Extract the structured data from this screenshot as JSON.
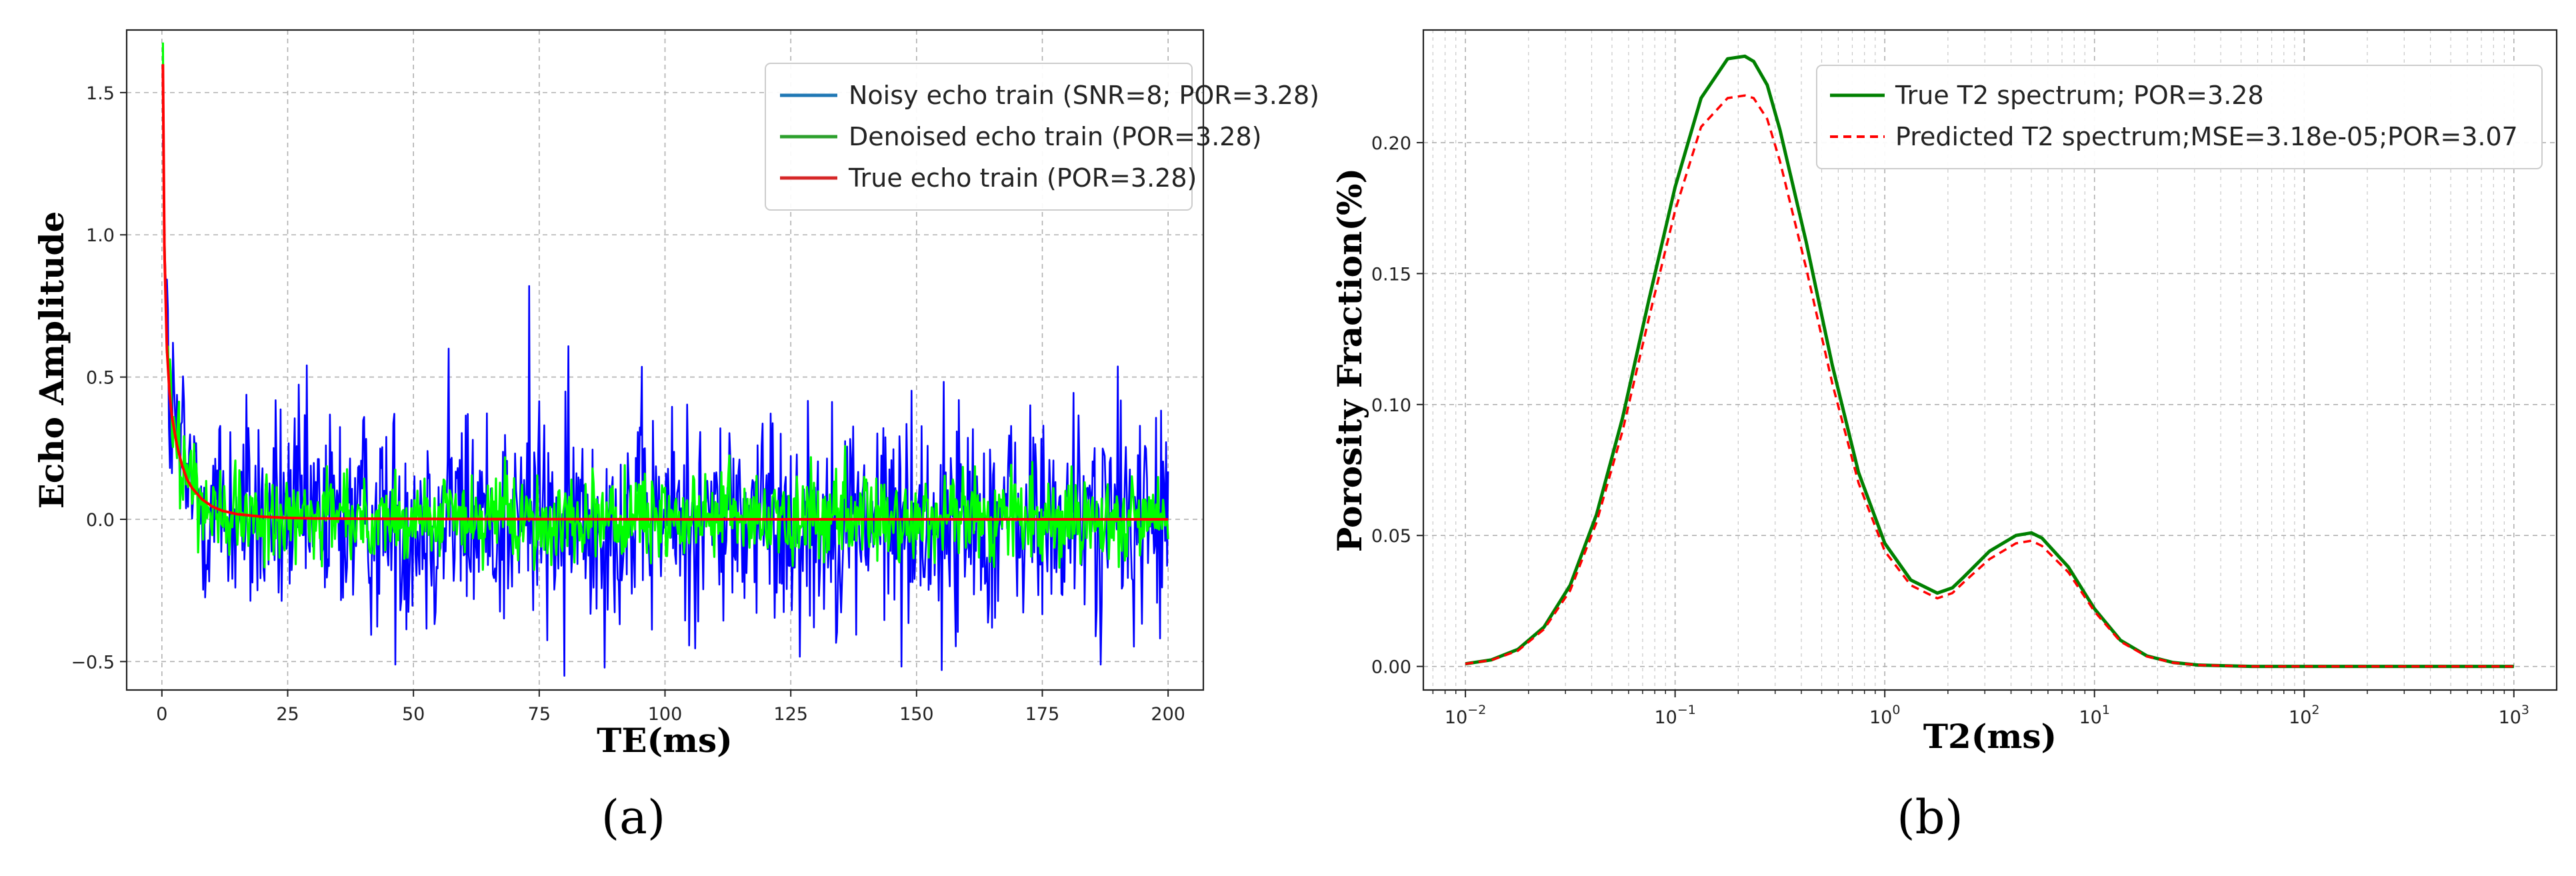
{
  "chart_data": [
    {
      "panel": "(a)",
      "type": "line",
      "xlabel": "TE(ms)",
      "ylabel": "Echo Amplitude",
      "xlim": [
        -7,
        207
      ],
      "ylim": [
        -0.6,
        1.72
      ],
      "xticks": [
        0,
        25,
        50,
        75,
        100,
        125,
        150,
        175,
        200
      ],
      "yticks": [
        -0.5,
        0.0,
        0.5,
        1.0,
        1.5
      ],
      "xtick_labels": [
        "0",
        "25",
        "50",
        "75",
        "100",
        "125",
        "150",
        "175",
        "200"
      ],
      "ytick_labels": [
        "−0.5",
        "0.0",
        "0.5",
        "1.0",
        "1.5"
      ],
      "grid": true,
      "legend_position": "top-right",
      "series": [
        {
          "name": "Noisy echo train (SNR=8; POR=3.28)",
          "color": "#0000ff",
          "generator": "noisy",
          "n_points": 1000,
          "noise_amplitude": 0.2,
          "x_range": [
            0.2,
            200
          ]
        },
        {
          "name": "Denoised echo train (POR=3.28)",
          "color": "#00ff00",
          "generator": "denoised",
          "n_points": 1000,
          "noise_amplitude": 0.08,
          "x_range": [
            0.2,
            200
          ]
        },
        {
          "name": "True echo train (POR=3.28)",
          "color": "#ff0000",
          "x": [
            0.2,
            0.5,
            1,
            1.5,
            2,
            3,
            4,
            5,
            6,
            8,
            10,
            12,
            15,
            20,
            25,
            30,
            40,
            60,
            100,
            150,
            200
          ],
          "y": [
            1.6,
            0.95,
            0.6,
            0.45,
            0.36,
            0.26,
            0.19,
            0.14,
            0.11,
            0.07,
            0.045,
            0.03,
            0.018,
            0.009,
            0.005,
            0.003,
            0.002,
            0.001,
            0.0,
            0.0,
            0.0
          ]
        }
      ],
      "notable_noisy_peaks": [
        {
          "x": 73,
          "y": 0.82
        },
        {
          "x": 57,
          "y": 0.6
        },
        {
          "x": 80,
          "y": -0.55
        },
        {
          "x": 155,
          "y": -0.53
        }
      ]
    },
    {
      "panel": "(b)",
      "type": "line",
      "xscale": "log",
      "xlabel": "T2(ms)",
      "ylabel": "Porosity Fraction(%)",
      "xlim": [
        0.0063,
        1600
      ],
      "ylim": [
        -0.009,
        0.243
      ],
      "xticks": [
        0.01,
        0.1,
        1,
        10,
        100,
        1000
      ],
      "xtick_labels": [
        {
          "base": "10",
          "exp": "−2"
        },
        {
          "base": "10",
          "exp": "−1"
        },
        {
          "base": "10",
          "exp": "0"
        },
        {
          "base": "10",
          "exp": "1"
        },
        {
          "base": "10",
          "exp": "2"
        },
        {
          "base": "10",
          "exp": "3"
        }
      ],
      "yticks": [
        0.0,
        0.05,
        0.1,
        0.15,
        0.2
      ],
      "ytick_labels": [
        "0.00",
        "0.05",
        "0.10",
        "0.15",
        "0.20"
      ],
      "grid": true,
      "legend_position": "top-right",
      "x": [
        0.01,
        0.0133,
        0.0178,
        0.0237,
        0.0316,
        0.0422,
        0.0562,
        0.075,
        0.1,
        0.133,
        0.178,
        0.215,
        0.237,
        0.275,
        0.316,
        0.422,
        0.562,
        0.75,
        1.0,
        1.33,
        1.78,
        2.1,
        2.37,
        3.16,
        4.22,
        5.0,
        5.62,
        7.5,
        10,
        13.3,
        17.8,
        23.7,
        31.6,
        56.2,
        100,
        316,
        1000
      ],
      "series": [
        {
          "name": "True T2 spectrum;  POR=3.28",
          "color": "#008000",
          "dash": "solid",
          "y": [
            0.001,
            0.0025,
            0.0065,
            0.015,
            0.031,
            0.058,
            0.095,
            0.14,
            0.183,
            0.217,
            0.232,
            0.233,
            0.231,
            0.222,
            0.205,
            0.162,
            0.115,
            0.074,
            0.047,
            0.033,
            0.028,
            0.03,
            0.034,
            0.044,
            0.05,
            0.051,
            0.049,
            0.038,
            0.022,
            0.01,
            0.004,
            0.0015,
            0.0005,
            0.0,
            0.0,
            0.0,
            0.0
          ]
        },
        {
          "name": "Predicted T2 spectrum;MSE=3.18e-05;POR=3.07",
          "color": "#ff0000",
          "dash": "dashed",
          "y": [
            0.001,
            0.0024,
            0.006,
            0.0142,
            0.029,
            0.055,
            0.09,
            0.133,
            0.174,
            0.206,
            0.217,
            0.218,
            0.217,
            0.209,
            0.193,
            0.152,
            0.108,
            0.07,
            0.044,
            0.031,
            0.026,
            0.028,
            0.032,
            0.041,
            0.047,
            0.048,
            0.046,
            0.036,
            0.021,
            0.0095,
            0.0038,
            0.0014,
            0.0005,
            0.0,
            0.0,
            0.0,
            0.0
          ]
        }
      ]
    }
  ],
  "panels": {
    "a_label": "(a)",
    "b_label": "(b)"
  }
}
